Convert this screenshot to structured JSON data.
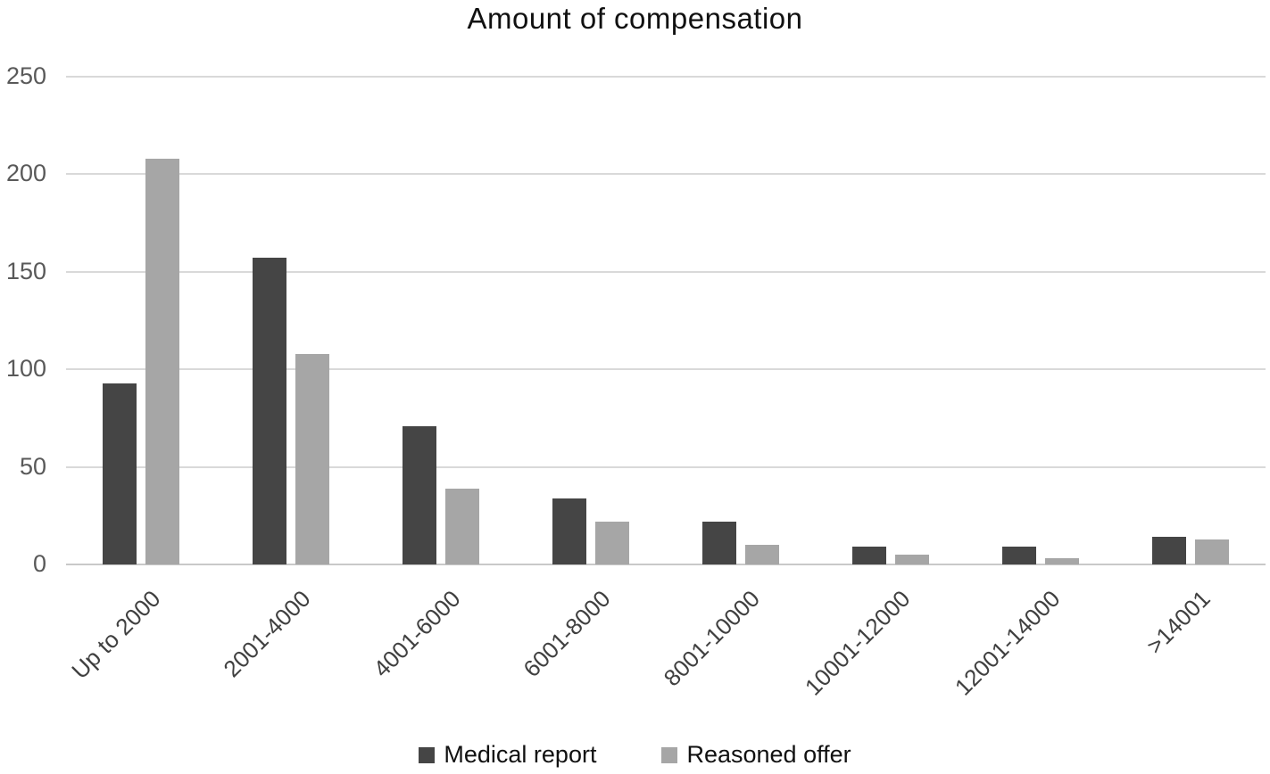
{
  "chart_data": {
    "type": "bar",
    "title": "Amount of compensation",
    "categories": [
      "Up to 2000",
      "2001-4000",
      "4001-6000",
      "6001-8000",
      "8001-10000",
      "10001-12000",
      "12001-14000",
      ">14001"
    ],
    "series": [
      {
        "name": "Medical report",
        "color": "#454545",
        "values": [
          93,
          157,
          71,
          34,
          22,
          9,
          9,
          14
        ]
      },
      {
        "name": "Reasoned offer",
        "color": "#a6a6a6",
        "values": [
          208,
          108,
          39,
          22,
          10,
          5,
          3,
          13
        ]
      }
    ],
    "xlabel": "",
    "ylabel": "",
    "ylim": [
      0,
      250
    ],
    "yticks": [
      0,
      50,
      100,
      150,
      200,
      250
    ],
    "grid": true,
    "legend_position": "bottom",
    "colors": {
      "gridline": "#d9d9d9",
      "axis_line": "#c9c9c9",
      "y_tick_label": "#595959",
      "x_category_label": "#404040",
      "title_text": "#111111"
    }
  }
}
